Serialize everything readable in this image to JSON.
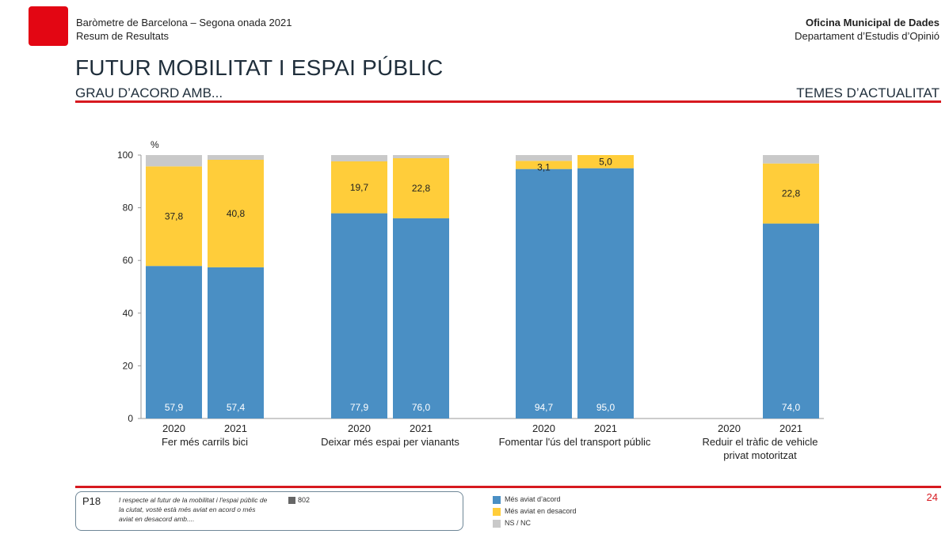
{
  "header": {
    "left_line1": "Baròmetre de Barcelona – Segona onada 2021",
    "left_line2": "Resum de Resultats",
    "right_line1": "Oficina Municipal de Dades",
    "right_line2": "Departament d’Estudis d’Opinió"
  },
  "page": {
    "title": "FUTUR MOBILITAT I ESPAI PÚBLIC",
    "subtitle": "GRAU D’ACORD AMB...",
    "section": "TEMES D’ACTUALITAT",
    "number": "24"
  },
  "question": {
    "code": "P18",
    "text": "I respecte al futur de la mobilitat i l'espai públic de la ciutat, vostè està més aviat en acord o més aviat en desacord amb....",
    "n": "802"
  },
  "colors": {
    "acord": "#4a8fc4",
    "desacord": "#ffcd3a",
    "nsnc": "#c9c9c9",
    "accent": "#d71920"
  },
  "chart_data": {
    "type": "bar",
    "stacked": true,
    "ylabel": "%",
    "ylim": [
      0,
      100
    ],
    "yticks": [
      0,
      20,
      40,
      60,
      80,
      100
    ],
    "legend_position": "bottom",
    "groups": [
      {
        "label_lines": [
          "Fer més carrils bici"
        ],
        "bars": [
          {
            "year": "2020",
            "acord": 57.9,
            "desacord": 37.8,
            "nsnc": 4.3
          },
          {
            "year": "2021",
            "acord": 57.4,
            "desacord": 40.8,
            "nsnc": 1.8
          }
        ]
      },
      {
        "label_lines": [
          "Deixar més espai per vianants"
        ],
        "bars": [
          {
            "year": "2020",
            "acord": 77.9,
            "desacord": 19.7,
            "nsnc": 2.4
          },
          {
            "year": "2021",
            "acord": 76.0,
            "desacord": 22.8,
            "nsnc": 1.2
          }
        ]
      },
      {
        "label_lines": [
          "Fomentar l'ús del transport públic"
        ],
        "bars": [
          {
            "year": "2020",
            "acord": 94.7,
            "desacord": 3.1,
            "nsnc": 2.2
          },
          {
            "year": "2021",
            "acord": 95.0,
            "desacord": 5.0,
            "nsnc": 0.0
          }
        ]
      },
      {
        "label_lines": [
          "Reduir el tràfic de vehicle",
          "privat motoritzat"
        ],
        "bars": [
          {
            "year": "2020",
            "acord": null,
            "desacord": null,
            "nsnc": null
          },
          {
            "year": "2021",
            "acord": 74.0,
            "desacord": 22.8,
            "nsnc": 3.2
          }
        ]
      }
    ],
    "series": [
      {
        "key": "acord",
        "name": "Més aviat d’acord"
      },
      {
        "key": "desacord",
        "name": "Més aviat en desacord"
      },
      {
        "key": "nsnc",
        "name": "NS / NC"
      }
    ]
  }
}
